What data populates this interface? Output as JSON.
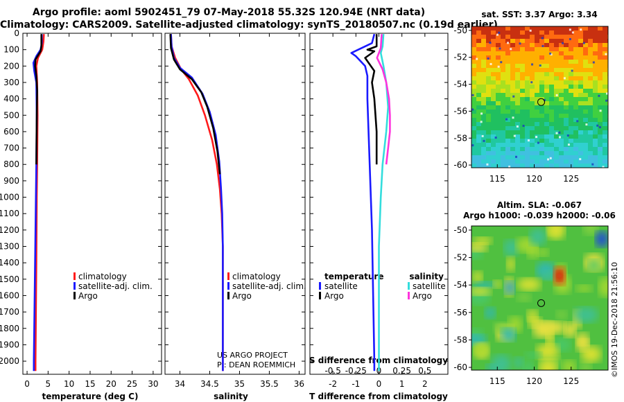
{
  "header": {
    "line1": "Argo profile: aoml 5902451_79 07-May-2018 55.32S 120.94E (NRT data)",
    "line2": "Climatology: CARS2009. Satellite-adjusted climatology: synTS_20180507.nc (0.19d earlier)"
  },
  "colors": {
    "climatology": "#ff1a1a",
    "satellite": "#1a1aff",
    "argo": "#000000",
    "sat_salinity": "#33dddd",
    "argo_salinity": "#ff33dd"
  },
  "chart_data": [
    {
      "type": "line",
      "name": "temperature-profile",
      "xlabel": "temperature (deg C)",
      "xlim": [
        -1,
        32
      ],
      "xticks": [
        "0",
        "5",
        "10",
        "15",
        "20",
        "25",
        "30"
      ],
      "xtick_values": [
        0,
        5,
        10,
        15,
        20,
        25,
        30
      ],
      "ylim": [
        2080,
        0
      ],
      "yticks": [
        "0",
        "100",
        "200",
        "300",
        "400",
        "500",
        "600",
        "700",
        "800",
        "900",
        "1000",
        "1100",
        "1200",
        "1300",
        "1400",
        "1500",
        "1600",
        "1700",
        "1800",
        "1900",
        "2000"
      ],
      "ytick_values": [
        0,
        100,
        200,
        300,
        400,
        500,
        600,
        700,
        800,
        900,
        1000,
        1100,
        1200,
        1300,
        1400,
        1500,
        1600,
        1700,
        1800,
        1900,
        2000
      ],
      "legend": [
        "climatology",
        "satellite-adj. clim.",
        "Argo"
      ],
      "series": [
        {
          "name": "climatology",
          "color": "#ff1a1a",
          "points": [
            [
              4.0,
              5
            ],
            [
              3.9,
              50
            ],
            [
              3.6,
              100
            ],
            [
              2.6,
              150
            ],
            [
              2.2,
              200
            ],
            [
              2.4,
              300
            ],
            [
              2.5,
              500
            ],
            [
              2.4,
              800
            ],
            [
              2.3,
              1000
            ],
            [
              2.2,
              1400
            ],
            [
              2.0,
              2000
            ],
            [
              2.0,
              2060
            ]
          ]
        },
        {
          "name": "satellite-adj. clim.",
          "color": "#1a1aff",
          "points": [
            [
              3.5,
              5
            ],
            [
              3.5,
              60
            ],
            [
              3.2,
              100
            ],
            [
              2.2,
              140
            ],
            [
              1.5,
              180
            ],
            [
              1.7,
              230
            ],
            [
              2.2,
              300
            ],
            [
              2.3,
              500
            ],
            [
              2.2,
              800
            ],
            [
              2.1,
              1000
            ],
            [
              1.9,
              1400
            ],
            [
              1.6,
              2000
            ],
            [
              1.6,
              2060
            ]
          ]
        },
        {
          "name": "Argo",
          "color": "#000000",
          "points": [
            [
              3.4,
              5
            ],
            [
              3.4,
              80
            ],
            [
              3.2,
              110
            ],
            [
              2.0,
              160
            ],
            [
              1.9,
              200
            ],
            [
              2.2,
              260
            ],
            [
              2.4,
              350
            ],
            [
              2.3,
              500
            ],
            [
              2.2,
              800
            ]
          ]
        }
      ]
    },
    {
      "type": "line",
      "name": "salinity-profile",
      "xlabel": "salinity",
      "xlim": [
        33.75,
        36.1
      ],
      "xticks": [
        "34",
        "34.5",
        "35",
        "35.5",
        "36"
      ],
      "xtick_values": [
        34,
        34.5,
        35,
        35.5,
        36
      ],
      "ylim": [
        2080,
        0
      ],
      "legend": [
        "climatology",
        "satellite-adj. clim.",
        "Argo"
      ],
      "series": [
        {
          "name": "climatology",
          "color": "#ff1a1a",
          "points": [
            [
              33.85,
              5
            ],
            [
              33.86,
              80
            ],
            [
              33.92,
              150
            ],
            [
              34.02,
              220
            ],
            [
              34.15,
              280
            ],
            [
              34.3,
              380
            ],
            [
              34.42,
              500
            ],
            [
              34.54,
              650
            ],
            [
              34.62,
              800
            ],
            [
              34.67,
              950
            ],
            [
              34.7,
              1100
            ],
            [
              34.72,
              1300
            ],
            [
              34.72,
              1700
            ],
            [
              34.72,
              2000
            ],
            [
              34.72,
              2060
            ]
          ]
        },
        {
          "name": "satellite-adj. clim.",
          "color": "#1a1aff",
          "points": [
            [
              33.85,
              5
            ],
            [
              33.86,
              80
            ],
            [
              33.9,
              150
            ],
            [
              34.0,
              210
            ],
            [
              34.2,
              270
            ],
            [
              34.38,
              370
            ],
            [
              34.5,
              480
            ],
            [
              34.6,
              620
            ],
            [
              34.66,
              780
            ],
            [
              34.69,
              950
            ],
            [
              34.71,
              1100
            ],
            [
              34.72,
              1300
            ],
            [
              34.72,
              1700
            ],
            [
              34.72,
              2000
            ],
            [
              34.72,
              2060
            ]
          ]
        },
        {
          "name": "Argo",
          "color": "#000000",
          "points": [
            [
              33.84,
              5
            ],
            [
              33.85,
              90
            ],
            [
              33.9,
              160
            ],
            [
              34.0,
              220
            ],
            [
              34.2,
              280
            ],
            [
              34.36,
              360
            ],
            [
              34.46,
              450
            ],
            [
              34.56,
              580
            ],
            [
              34.63,
              720
            ],
            [
              34.67,
              860
            ]
          ]
        }
      ],
      "annotations": [
        "US ARGO PROJECT",
        "PI: DEAN ROEMMICH"
      ]
    },
    {
      "type": "line",
      "name": "difference-from-climatology",
      "xlabel": "T difference from climatology",
      "xlabel_top": "S difference from climatology",
      "xlim_T": [
        -3,
        3
      ],
      "xticks_T": [
        "-2",
        "-1",
        "0",
        "1",
        "2"
      ],
      "xtick_values_T": [
        -2,
        -1,
        0,
        1,
        2
      ],
      "xlim_S": [
        -0.75,
        0.75
      ],
      "xticks_S": [
        "-0.5",
        "-0.25",
        "0",
        "0.25",
        "0.5"
      ],
      "xtick_values_S": [
        -0.5,
        -0.25,
        0,
        0.25,
        0.5
      ],
      "ylim": [
        2080,
        0
      ],
      "legend_temperature_title": "temperature",
      "legend_salinity_title": "salinity",
      "legend_temperature": [
        "satellite",
        "Argo"
      ],
      "legend_salinity": [
        "satellite",
        "Argo"
      ],
      "series": [
        {
          "name": "temperature satellite",
          "color": "#1a1aff",
          "points": [
            [
              -0.2,
              5
            ],
            [
              -0.3,
              60
            ],
            [
              -0.9,
              100
            ],
            [
              -1.2,
              120
            ],
            [
              -1.0,
              140
            ],
            [
              -0.8,
              170
            ],
            [
              -0.6,
              200
            ],
            [
              -0.5,
              260
            ],
            [
              -0.5,
              400
            ],
            [
              -0.4,
              800
            ],
            [
              -0.3,
              1200
            ],
            [
              -0.25,
              1600
            ],
            [
              -0.2,
              2000
            ],
            [
              -0.2,
              2060
            ]
          ]
        },
        {
          "name": "temperature Argo",
          "color": "#000000",
          "points": [
            [
              -0.1,
              5
            ],
            [
              -0.1,
              80
            ],
            [
              -0.5,
              100
            ],
            [
              -0.2,
              110
            ],
            [
              -0.6,
              150
            ],
            [
              -0.4,
              190
            ],
            [
              -0.2,
              230
            ],
            [
              -0.3,
              300
            ],
            [
              -0.2,
              400
            ],
            [
              -0.1,
              600
            ],
            [
              -0.1,
              800
            ]
          ]
        },
        {
          "name": "salinity satellite",
          "color": "#33dddd",
          "points": [
            [
              0.05,
              5
            ],
            [
              0.04,
              80
            ],
            [
              0.02,
              120
            ],
            [
              0.05,
              200
            ],
            [
              0.08,
              300
            ],
            [
              0.1,
              450
            ],
            [
              0.08,
              600
            ],
            [
              0.04,
              800
            ],
            [
              0.02,
              1000
            ],
            [
              0.0,
              1300
            ],
            [
              0.0,
              1700
            ],
            [
              0.0,
              2060
            ]
          ]
        },
        {
          "name": "salinity Argo",
          "color": "#ff33dd",
          "points": [
            [
              0.03,
              5
            ],
            [
              0.02,
              90
            ],
            [
              -0.02,
              150
            ],
            [
              0.04,
              220
            ],
            [
              0.08,
              300
            ],
            [
              0.11,
              400
            ],
            [
              0.12,
              500
            ],
            [
              0.12,
              600
            ],
            [
              0.1,
              700
            ],
            [
              0.08,
              800
            ]
          ]
        }
      ]
    },
    {
      "type": "heatmap",
      "name": "satellite-sst-map",
      "title": "sat. SST: 3.37 Argo: 3.34",
      "xticks": [
        "115",
        "120",
        "125"
      ],
      "xtick_values": [
        115,
        120,
        125
      ],
      "yticks": [
        "-50",
        "-52",
        "-54",
        "-56",
        "-58",
        "-60"
      ],
      "ytick_values": [
        -50,
        -52,
        -54,
        -56,
        -58,
        -60
      ],
      "xlim": [
        111.5,
        130
      ],
      "ylim": [
        -60.2,
        -49.7
      ],
      "marker": [
        120.94,
        -55.32
      ]
    },
    {
      "type": "heatmap",
      "name": "altimetry-sla-map",
      "title_line1": "Altim. SLA: -0.067",
      "title_line2": "Argo h1000: -0.039 h2000: -0.06",
      "xticks": [
        "115",
        "120",
        "125"
      ],
      "xtick_values": [
        115,
        120,
        125
      ],
      "yticks": [
        "-50",
        "-52",
        "-54",
        "-56",
        "-58",
        "-60"
      ],
      "ytick_values": [
        -50,
        -52,
        -54,
        -56,
        -58,
        -60
      ],
      "xlim": [
        111.5,
        130
      ],
      "ylim": [
        -60.2,
        -49.7
      ],
      "marker": [
        120.94,
        -55.32
      ],
      "credit": "©IMOS 19-Dec-2018 21:56:10"
    }
  ]
}
